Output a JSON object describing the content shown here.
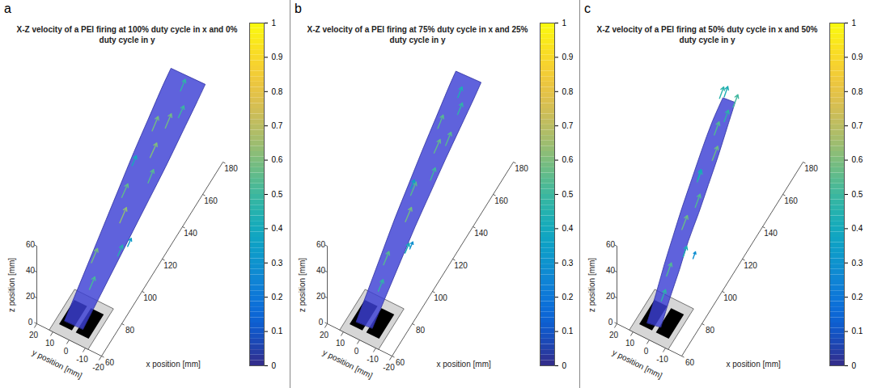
{
  "chart_data": [
    {
      "type": "quiver3d",
      "panel_label": "a",
      "title": "X-Z velocity of a PEI firing at 100% duty cycle in x and 0% duty cycle in y",
      "xlabel": "x position [mm]",
      "ylabel": "y position [mm]",
      "zlabel": "z position [mm]",
      "xlim": [
        60,
        180
      ],
      "xticks": [
        60,
        80,
        100,
        120,
        140,
        160,
        180
      ],
      "ylim": [
        -20,
        20
      ],
      "yticks": [
        -20,
        -10,
        0,
        10,
        20
      ],
      "zlim": [
        0,
        60
      ],
      "zticks": [
        0,
        20,
        40,
        60
      ],
      "colorbar": {
        "lim": [
          0,
          1
        ],
        "ticks": [
          0,
          0.1,
          0.2,
          0.3,
          0.4,
          0.5,
          0.6,
          0.7,
          0.8,
          0.9,
          1
        ]
      },
      "color": "#3c3fd4",
      "source": {
        "x": [
          60,
          85
        ],
        "y": [
          -12,
          12
        ]
      },
      "plume": {
        "x": [
          65,
          80,
          95,
          110,
          125,
          140,
          155,
          170,
          178
        ],
        "y": [
          0,
          0,
          0,
          0,
          0,
          0,
          0,
          0,
          0
        ],
        "z": [
          5,
          11.8,
          18.6,
          25.5,
          32.3,
          39.1,
          45.9,
          52.7,
          56
        ],
        "radius": [
          7,
          8,
          9,
          10,
          11,
          12,
          12.5,
          13,
          13
        ]
      },
      "vectors": {
        "x": [
          80,
          90,
          100,
          110,
          120,
          130,
          140,
          150,
          160,
          170,
          105,
          135,
          155
        ],
        "y": [
          0,
          5,
          -5,
          0,
          5,
          -5,
          0,
          5,
          -5,
          0,
          -8,
          8,
          0
        ],
        "z": [
          14,
          19,
          18,
          28,
          32,
          37,
          41,
          46,
          50,
          55,
          21,
          36,
          45
        ],
        "u": [
          0.45,
          0.5,
          0.4,
          0.55,
          0.5,
          0.45,
          0.55,
          0.5,
          0.45,
          0.4,
          0.3,
          0.35,
          0.5
        ],
        "w": [
          0.25,
          0.3,
          0.2,
          0.3,
          0.25,
          0.3,
          0.25,
          0.3,
          0.2,
          0.25,
          0.15,
          0.2,
          0.3
        ]
      }
    },
    {
      "type": "quiver3d",
      "panel_label": "b",
      "title": "X-Z velocity of a PEI firing at 75% duty cycle in x and 25% duty cycle in y",
      "xlabel": "x position [mm]",
      "ylabel": "y position [mm]",
      "zlabel": "z position [mm]",
      "xlim": [
        60,
        180
      ],
      "xticks": [
        60,
        80,
        100,
        120,
        140,
        160,
        180
      ],
      "ylim": [
        -20,
        20
      ],
      "yticks": [
        -20,
        -10,
        0,
        10,
        20
      ],
      "zlim": [
        0,
        60
      ],
      "zticks": [
        0,
        20,
        40,
        60
      ],
      "colorbar": {
        "lim": [
          0,
          1
        ],
        "ticks": [
          0,
          0.1,
          0.2,
          0.3,
          0.4,
          0.5,
          0.6,
          0.7,
          0.8,
          0.9,
          1
        ]
      },
      "color": "#3c3fd4",
      "source": {
        "x": [
          60,
          85
        ],
        "y": [
          -12,
          12
        ]
      },
      "plume": {
        "x": [
          65,
          80,
          95,
          110,
          125,
          140,
          155,
          170,
          176
        ],
        "y": [
          0,
          1,
          2,
          3,
          3.5,
          4,
          4.5,
          5,
          5
        ],
        "z": [
          5,
          12,
          19,
          26,
          33,
          40,
          46,
          52,
          55
        ],
        "radius": [
          6,
          6.5,
          7,
          7.5,
          8,
          8.5,
          9,
          9.5,
          9.5
        ]
      },
      "vectors": {
        "x": [
          80,
          90,
          100,
          110,
          120,
          130,
          140,
          150,
          160,
          165,
          100,
          125,
          145
        ],
        "y": [
          1,
          4,
          -3,
          3,
          6,
          0,
          4,
          8,
          2,
          5,
          -6,
          9,
          0
        ],
        "z": [
          12,
          18,
          19,
          27,
          33,
          36,
          42,
          46,
          48,
          53,
          24,
          30,
          44
        ],
        "u": [
          0.4,
          0.45,
          0.35,
          0.5,
          0.45,
          0.4,
          0.5,
          0.45,
          0.4,
          0.35,
          0.25,
          0.3,
          0.45
        ],
        "w": [
          0.25,
          0.3,
          0.2,
          0.3,
          0.3,
          0.3,
          0.25,
          0.3,
          0.25,
          0.25,
          0.15,
          0.2,
          0.3
        ]
      }
    },
    {
      "type": "quiver3d",
      "panel_label": "c",
      "title": "X-Z velocity of a PEI firing at 50% duty cycle in x and 50% duty cycle in y",
      "xlabel": "x position [mm]",
      "ylabel": "y position [mm]",
      "zlabel": "z position [mm]",
      "xlim": [
        60,
        180
      ],
      "xticks": [
        60,
        80,
        100,
        120,
        140,
        160,
        180
      ],
      "ylim": [
        -20,
        20
      ],
      "yticks": [
        -10,
        0,
        10,
        20
      ],
      "zlim": [
        0,
        60
      ],
      "zticks": [
        0,
        20,
        40,
        60
      ],
      "colorbar": {
        "lim": [
          0,
          1
        ],
        "ticks": [
          0,
          0.1,
          0.2,
          0.3,
          0.4,
          0.5,
          0.6,
          0.7,
          0.8,
          0.9,
          1
        ]
      },
      "color": "#3c3fd4",
      "source": {
        "x": [
          60,
          85
        ],
        "y": [
          -12,
          12
        ]
      },
      "plume": {
        "x": [
          65,
          77,
          89,
          101,
          113,
          125,
          137,
          149,
          160
        ],
        "y": [
          0,
          2,
          4,
          6,
          7.5,
          9,
          10.5,
          12,
          13
        ],
        "z": [
          5,
          11,
          17,
          23,
          29,
          35,
          41,
          47,
          52
        ],
        "radius": [
          5,
          5,
          5.5,
          5.5,
          6,
          6,
          6,
          5.5,
          4.5
        ]
      },
      "vectors": {
        "x": [
          75,
          85,
          95,
          105,
          115,
          125,
          135,
          145,
          150,
          158,
          100,
          130,
          155,
          162
        ],
        "y": [
          2,
          5,
          1,
          8,
          6,
          11,
          8,
          13,
          10,
          15,
          -2,
          14,
          16,
          12
        ],
        "z": [
          10,
          15,
          20,
          24,
          30,
          34,
          40,
          44,
          50,
          56,
          14,
          28,
          58,
          45
        ],
        "u": [
          0.35,
          0.4,
          0.3,
          0.45,
          0.4,
          0.35,
          0.45,
          0.4,
          0.35,
          0.3,
          0.2,
          0.3,
          0.35,
          0.4
        ],
        "w": [
          0.3,
          0.35,
          0.3,
          0.35,
          0.35,
          0.3,
          0.35,
          0.35,
          0.3,
          0.3,
          0.2,
          0.25,
          0.3,
          0.3
        ]
      }
    }
  ]
}
